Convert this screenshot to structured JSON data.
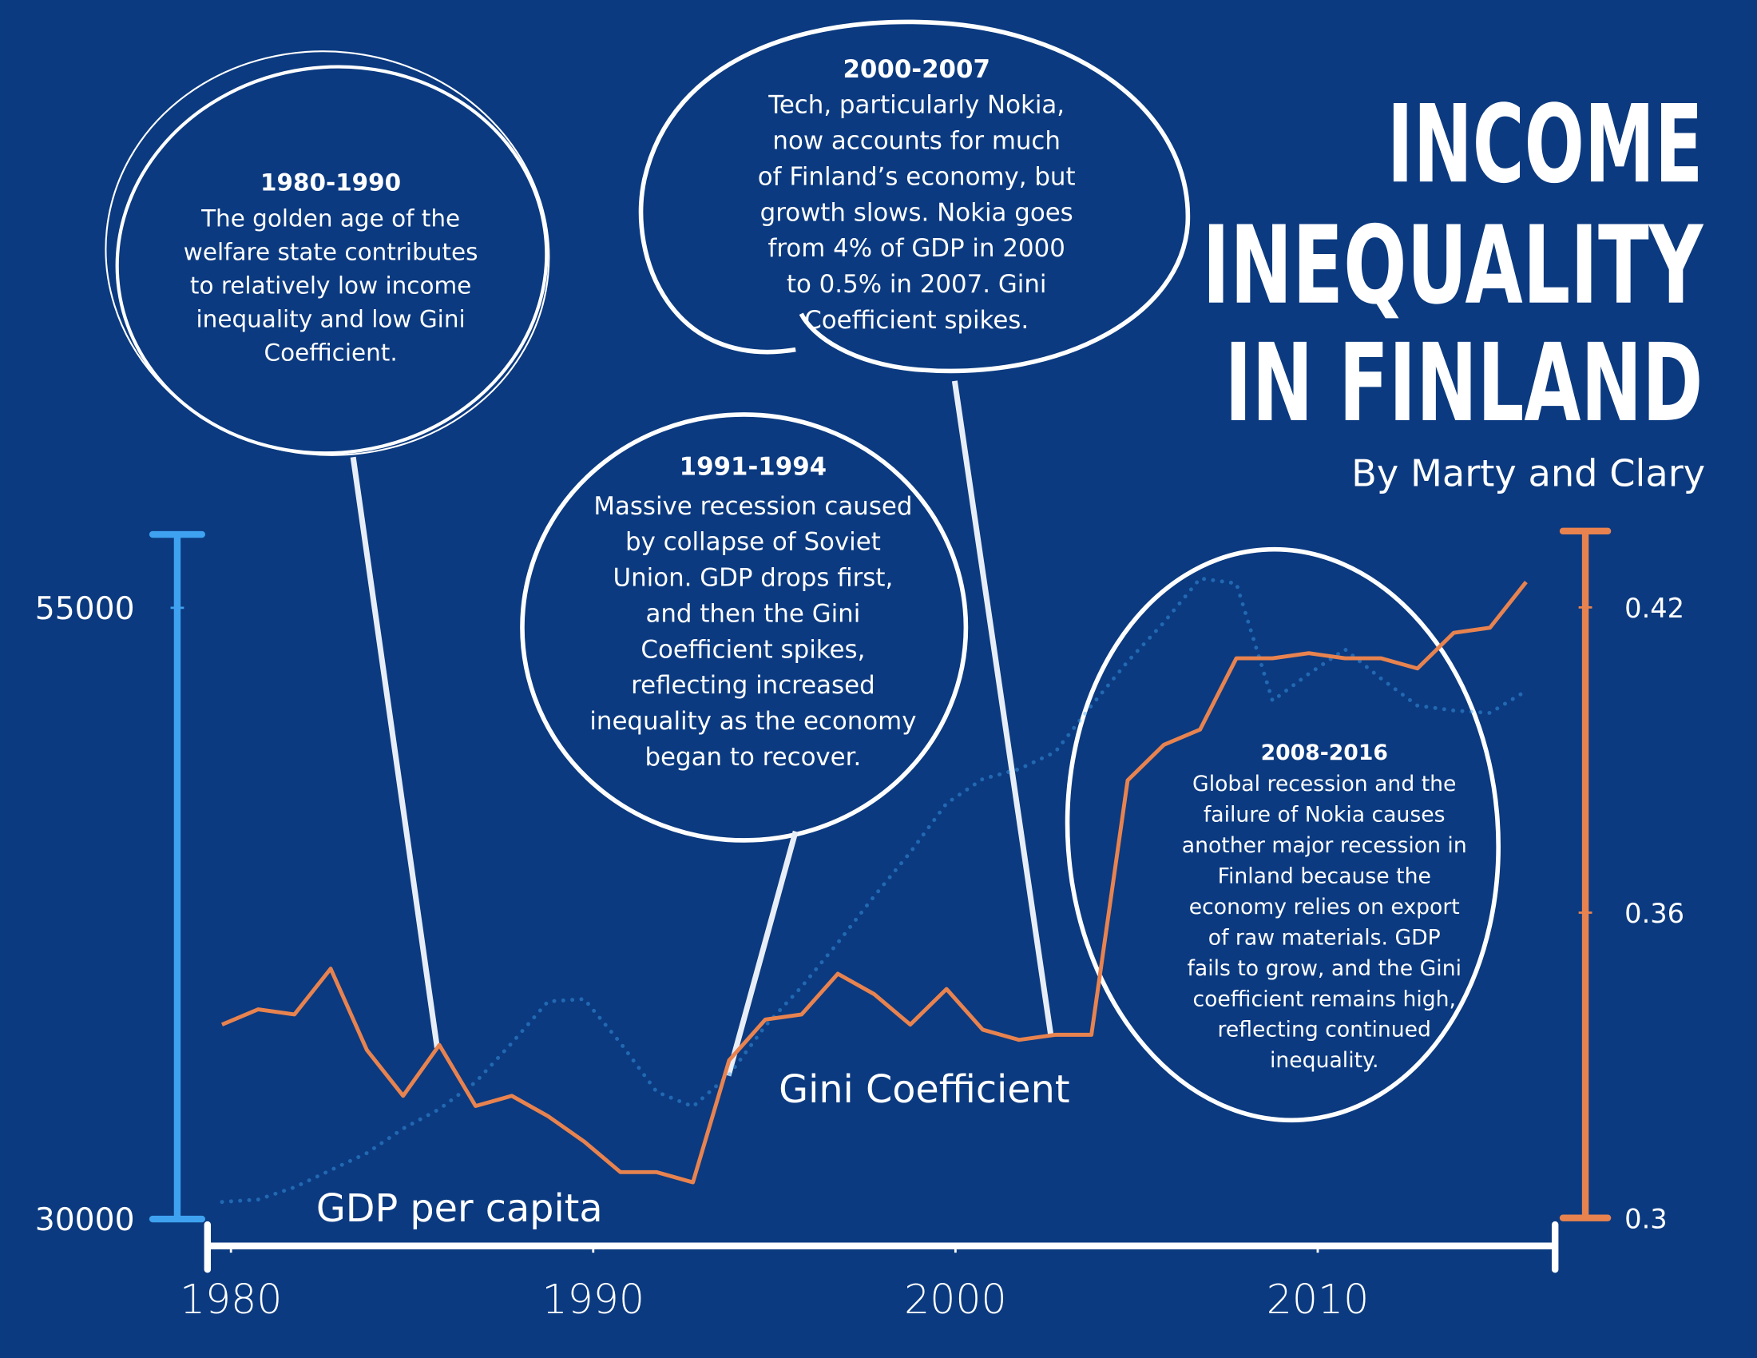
{
  "chart_data": {
    "type": "line",
    "title": [
      "INCOME",
      "INEQUALITY",
      "IN FINLAND"
    ],
    "subtitle": "By Marty and Clary",
    "x": [
      1980,
      1981,
      1982,
      1983,
      1984,
      1985,
      1986,
      1987,
      1988,
      1989,
      1990,
      1991,
      1992,
      1993,
      1994,
      1995,
      1996,
      1997,
      1998,
      1999,
      2000,
      2001,
      2002,
      2003,
      2004,
      2005,
      2006,
      2007,
      2008,
      2009,
      2010,
      2011,
      2012,
      2013,
      2014,
      2015,
      2016
    ],
    "xlim": [
      1979.6,
      2016.8
    ],
    "xticks": [
      1980,
      1990,
      2000,
      2010
    ],
    "ylim": [
      30000,
      58000
    ],
    "yticks": [
      30000,
      55000
    ],
    "y2lim": [
      0.3,
      0.435
    ],
    "y2ticks": [
      0.3,
      0.36,
      0.42
    ],
    "series": [
      {
        "name": "GDP per capita",
        "color": "#3ea2f0",
        "style": "dotted",
        "values": [
          30700,
          30800,
          31300,
          32000,
          32700,
          33700,
          34500,
          35600,
          37200,
          38900,
          39000,
          37200,
          35200,
          34600,
          35900,
          37900,
          39500,
          41300,
          43200,
          45000,
          47000,
          48000,
          48400,
          49100,
          51000,
          52800,
          54400,
          56200,
          56000,
          51200,
          52300,
          53300,
          52100,
          51000,
          50800,
          50700,
          51600
        ]
      },
      {
        "name": "Gini Coefficient",
        "color": "#e8834f",
        "style": "solid",
        "axis": "y2",
        "values": [
          0.338,
          0.341,
          0.34,
          0.349,
          0.333,
          0.324,
          0.334,
          0.322,
          0.324,
          0.32,
          0.315,
          0.309,
          0.309,
          0.307,
          0.331,
          0.339,
          0.34,
          0.348,
          0.344,
          0.338,
          0.345,
          0.337,
          0.335,
          0.336,
          0.336,
          0.386,
          0.393,
          0.396,
          0.41,
          0.41,
          0.411,
          0.41,
          0.41,
          0.408,
          0.415,
          0.416,
          0.425
        ]
      }
    ],
    "annotations": [
      {
        "heading": "1980-1990",
        "lines": [
          "The golden age of the",
          "welfare state contributes",
          "to relatively low income",
          "inequality and low Gini",
          "Coefficient."
        ]
      },
      {
        "heading": "2000-2007",
        "lines": [
          "Tech, particularly Nokia,",
          "now accounts for much",
          "of Finland’s economy, but",
          "growth slows. Nokia goes",
          "from 4% of GDP in 2000",
          "to 0.5% in 2007. Gini",
          "Coefficient spikes."
        ]
      },
      {
        "heading": "1991-1994",
        "lines": [
          "Massive recession caused",
          "by collapse of Soviet",
          "Union. GDP drops first,",
          "and then the Gini",
          "Coefficient spikes,",
          "reflecting increased",
          "inequality as the economy",
          "began to recover."
        ]
      },
      {
        "heading": "2008-2016",
        "lines": [
          "Global recession and the",
          "failure of Nokia causes",
          "another major recession in",
          "Finland because the",
          "economy relies on export",
          "of raw materials. GDP",
          "fails to grow, and the Gini",
          "coefficient remains high,",
          "reflecting continued",
          "inequality."
        ]
      }
    ]
  }
}
